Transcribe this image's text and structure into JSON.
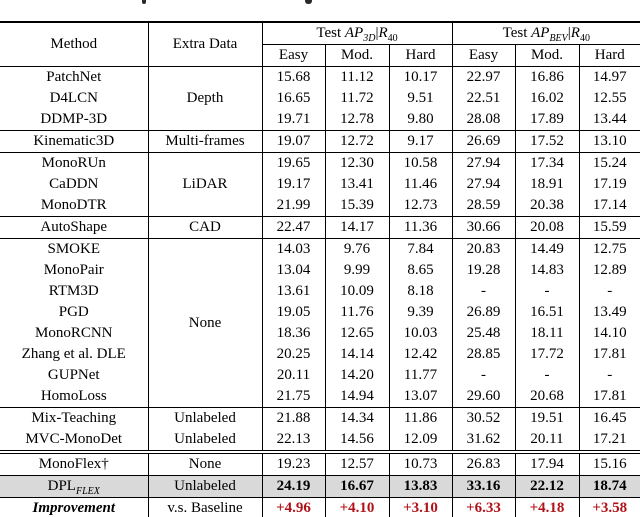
{
  "colors": {
    "accent_red": "#b11217",
    "highlight_gray": "#d9d9d9",
    "rule_black": "#000000"
  },
  "table": {
    "header": {
      "method": "Method",
      "extra_data": "Extra Data",
      "groups": [
        {
          "test": "Test",
          "ap": "AP",
          "ap_sub": "3D",
          "pipe": "|",
          "r": "R",
          "r_sub": "40"
        },
        {
          "test": "Test",
          "ap": "AP",
          "ap_sub": "BEV",
          "pipe": "|",
          "r": "R",
          "r_sub": "40"
        }
      ],
      "sub_columns": [
        "Easy",
        "Mod.",
        "Hard",
        "Easy",
        "Mod.",
        "Hard"
      ]
    },
    "rows": [
      {
        "method": "PatchNet",
        "extra": {
          "label": "Depth",
          "rowspan": 3
        },
        "values": [
          "15.68",
          "11.12",
          "10.17",
          "22.97",
          "16.86",
          "14.97"
        ]
      },
      {
        "method": "D4LCN",
        "values": [
          "16.65",
          "11.72",
          "9.51",
          "22.51",
          "16.02",
          "12.55"
        ]
      },
      {
        "method": "DDMP-3D",
        "values": [
          "19.71",
          "12.78",
          "9.80",
          "28.08",
          "17.89",
          "13.44"
        ]
      },
      {
        "method": "Kinematic3D",
        "rule_before": true,
        "extra": {
          "label": "Multi-frames",
          "rowspan": 1
        },
        "values": [
          "19.07",
          "12.72",
          "9.17",
          "26.69",
          "17.52",
          "13.10"
        ]
      },
      {
        "method": "MonoRUn",
        "rule_before": true,
        "extra": {
          "label": "LiDAR",
          "rowspan": 3
        },
        "values": [
          "19.65",
          "12.30",
          "10.58",
          "27.94",
          "17.34",
          "15.24"
        ]
      },
      {
        "method": "CaDDN",
        "values": [
          "19.17",
          "13.41",
          "11.46",
          "27.94",
          "18.91",
          "17.19"
        ]
      },
      {
        "method": "MonoDTR",
        "values": [
          "21.99",
          "15.39",
          "12.73",
          "28.59",
          "20.38",
          "17.14"
        ]
      },
      {
        "method": "AutoShape",
        "rule_before": true,
        "extra": {
          "label": "CAD",
          "rowspan": 1
        },
        "values": [
          "22.47",
          "14.17",
          "11.36",
          "30.66",
          "20.08",
          "15.59"
        ]
      },
      {
        "method": "SMOKE",
        "rule_before": true,
        "extra": {
          "label": "None",
          "rowspan": 8
        },
        "values": [
          "14.03",
          "9.76",
          "7.84",
          "20.83",
          "14.49",
          "12.75"
        ]
      },
      {
        "method": "MonoPair",
        "values": [
          "13.04",
          "9.99",
          "8.65",
          "19.28",
          "14.83",
          "12.89"
        ]
      },
      {
        "method": "RTM3D",
        "values": [
          "13.61",
          "10.09",
          "8.18",
          "-",
          "-",
          "-"
        ]
      },
      {
        "method": "PGD",
        "values": [
          "19.05",
          "11.76",
          "9.39",
          "26.89",
          "16.51",
          "13.49"
        ]
      },
      {
        "method": "MonoRCNN",
        "values": [
          "18.36",
          "12.65",
          "10.03",
          "25.48",
          "18.11",
          "14.10"
        ]
      },
      {
        "method": "Zhang et al. DLE",
        "values": [
          "20.25",
          "14.14",
          "12.42",
          "28.85",
          "17.72",
          "17.81"
        ]
      },
      {
        "method": "GUPNet",
        "values": [
          "20.11",
          "14.20",
          "11.77",
          "-",
          "-",
          "-"
        ]
      },
      {
        "method": "HomoLoss",
        "values": [
          "21.75",
          "14.94",
          "13.07",
          "29.60",
          "20.68",
          "17.81"
        ]
      },
      {
        "method": "Mix-Teaching",
        "rule_before": true,
        "extra": {
          "label": "Unlabeled",
          "rowspan": 1
        },
        "values": [
          "21.88",
          "14.34",
          "11.86",
          "30.52",
          "19.51",
          "16.45"
        ]
      },
      {
        "method": "MVC-MonoDet",
        "extra": {
          "label": "Unlabeled",
          "rowspan": 1
        },
        "values": [
          "22.13",
          "14.56",
          "12.09",
          "31.62",
          "20.11",
          "17.21"
        ]
      },
      {
        "method": "MonoFlex†",
        "double_rule_before": true,
        "extra": {
          "label": "None",
          "rowspan": 1
        },
        "values": [
          "19.23",
          "12.57",
          "10.73",
          "26.83",
          "17.94",
          "15.16"
        ]
      },
      {
        "method": "DPL",
        "method_sub": "FLEX",
        "rule_before": true,
        "highlight": true,
        "bold_values": true,
        "extra": {
          "label": "Unlabeled",
          "rowspan": 1
        },
        "values": [
          "24.19",
          "16.67",
          "13.83",
          "33.16",
          "22.12",
          "18.74"
        ]
      },
      {
        "method": "Improvement",
        "method_style": "bold-italic",
        "rule_before": true,
        "red_values": true,
        "extra": {
          "label": "v.s. Baseline",
          "rowspan": 1
        },
        "values": [
          "+4.96",
          "+4.10",
          "+3.10",
          "+6.33",
          "+4.18",
          "+3.58"
        ]
      }
    ]
  }
}
